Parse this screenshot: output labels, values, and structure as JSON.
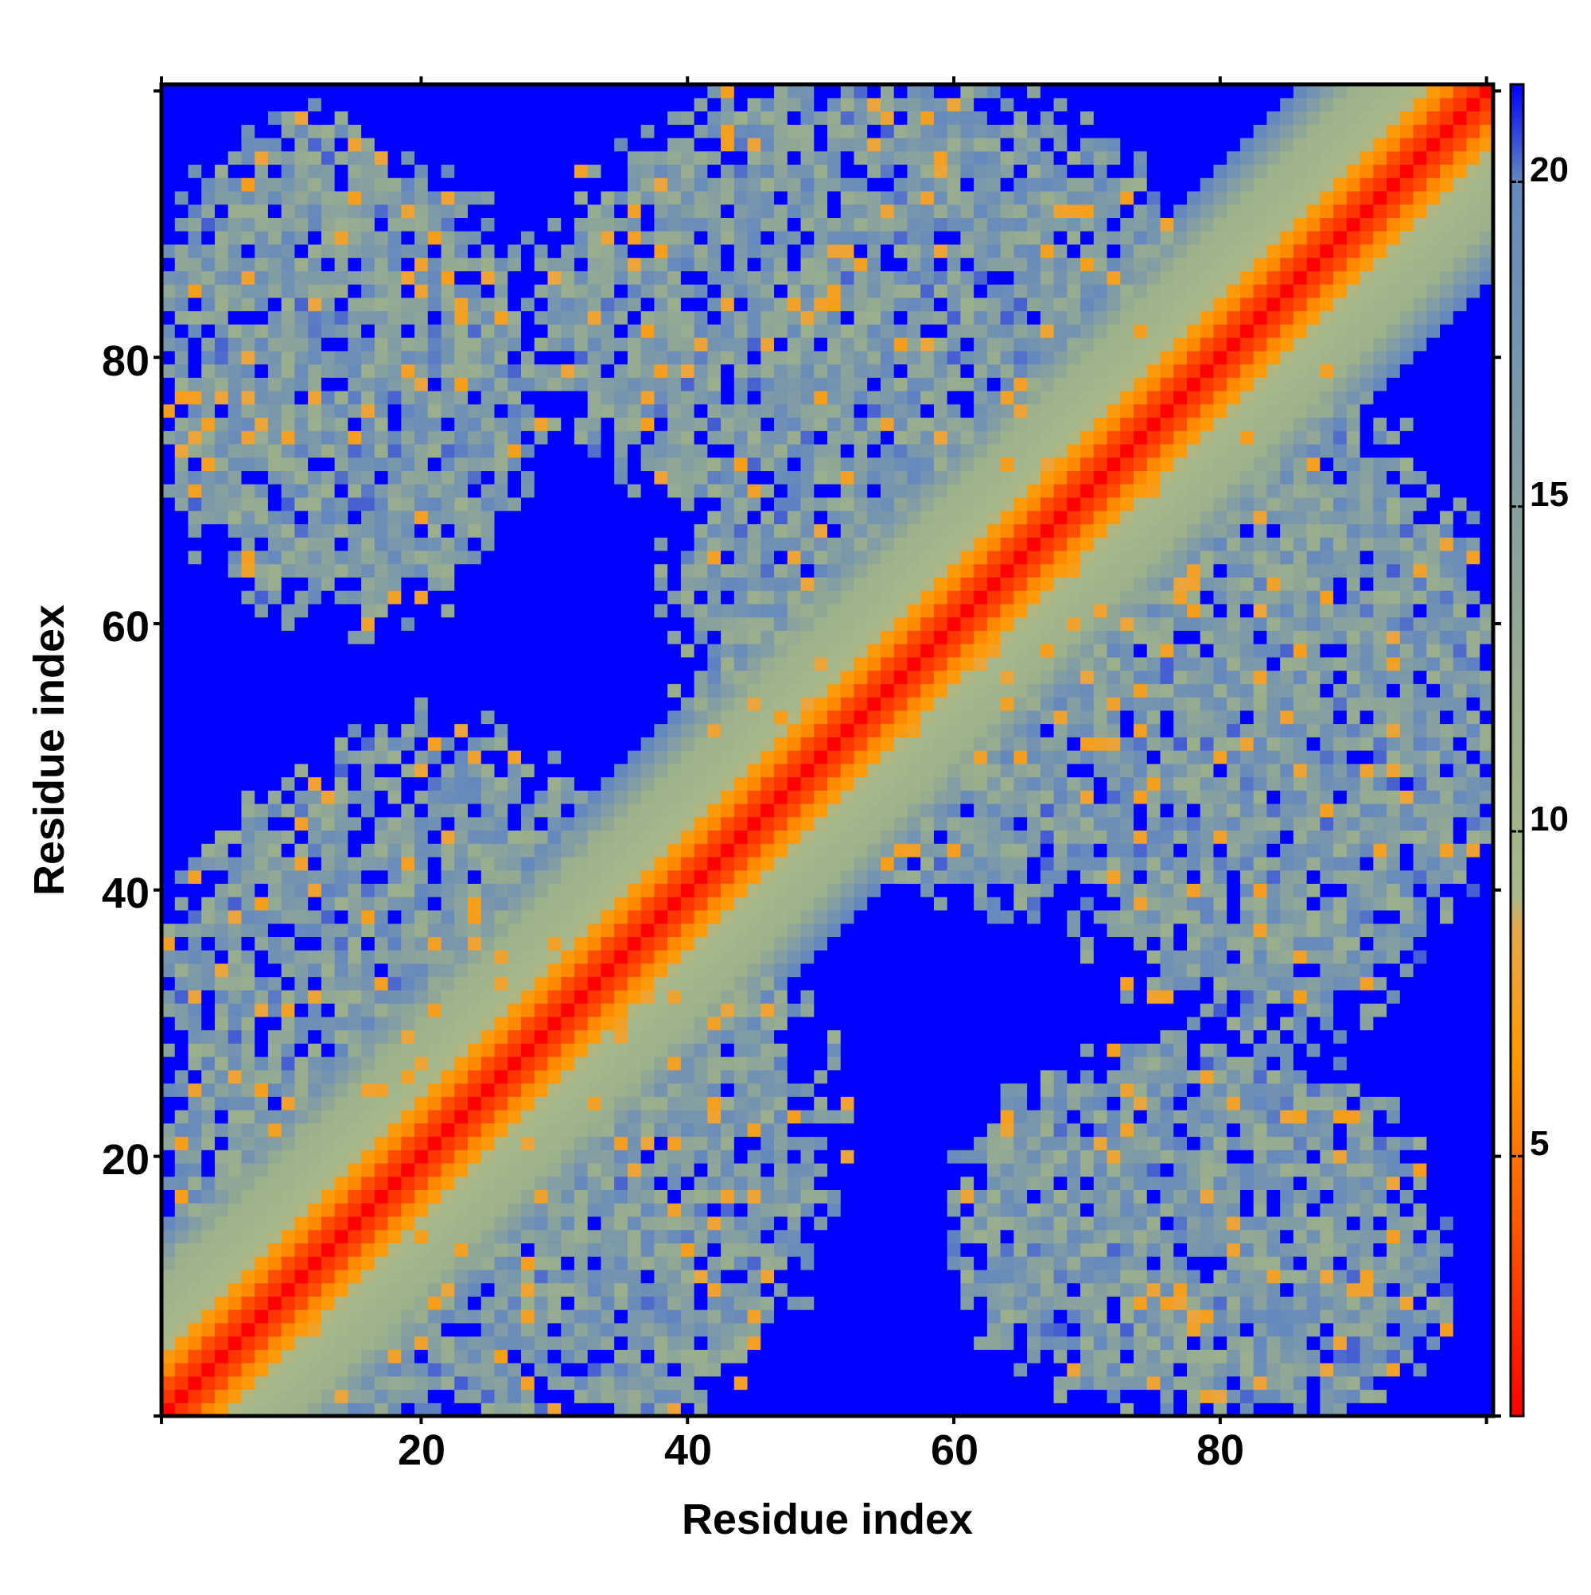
{
  "chart_data": {
    "type": "heatmap",
    "title": "",
    "xlabel": "Residue index",
    "ylabel": "Residue index",
    "xlim": [
      1,
      100
    ],
    "ylim": [
      1,
      100
    ],
    "x_ticks": [
      "20",
      "40",
      "60",
      "80"
    ],
    "y_ticks": [
      "20",
      "40",
      "60",
      "80"
    ],
    "colorbar": {
      "range": [
        1,
        21.5
      ],
      "ticks": [
        "5",
        "10",
        "15",
        "20"
      ],
      "stops": [
        {
          "value": 1,
          "color": "#ff0000"
        },
        {
          "value": 4,
          "color": "#ff5a00"
        },
        {
          "value": 6.5,
          "color": "#ff9900"
        },
        {
          "value": 8.5,
          "color": "#e6a84a"
        },
        {
          "value": 9,
          "color": "#a8b98a"
        },
        {
          "value": 12,
          "color": "#9aae8e"
        },
        {
          "value": 16,
          "color": "#7f9ba6"
        },
        {
          "value": 20,
          "color": "#6589bd"
        },
        {
          "value": 21.5,
          "color": "#0000ff"
        }
      ]
    },
    "cutoff_color": "#0000ff",
    "residues": 100,
    "structure": {
      "diagonal": "distance grows from ~1 at the diagonal to ~10 at offset 8-10, blue beyond ~14",
      "contact_blocks": [
        {
          "x": [
            1,
            20
          ],
          "y": [
            70,
            97
          ]
        },
        {
          "x": [
            33,
            68
          ],
          "y": [
            67,
            100
          ]
        },
        {
          "x": [
            1,
            40
          ],
          "y": [
            1,
            50
          ]
        },
        {
          "x": [
            67,
            100
          ],
          "y": [
            30,
            77
          ]
        },
        {
          "x": [
            24,
            47
          ],
          "y": [
            1,
            23
          ]
        },
        {
          "x": [
            61,
            95
          ],
          "y": [
            1,
            28
          ]
        },
        {
          "x": [
            45,
            85
          ],
          "y": [
            40,
            78
          ]
        },
        {
          "x": [
            5,
            30
          ],
          "y": [
            20,
            45
          ]
        }
      ]
    }
  }
}
